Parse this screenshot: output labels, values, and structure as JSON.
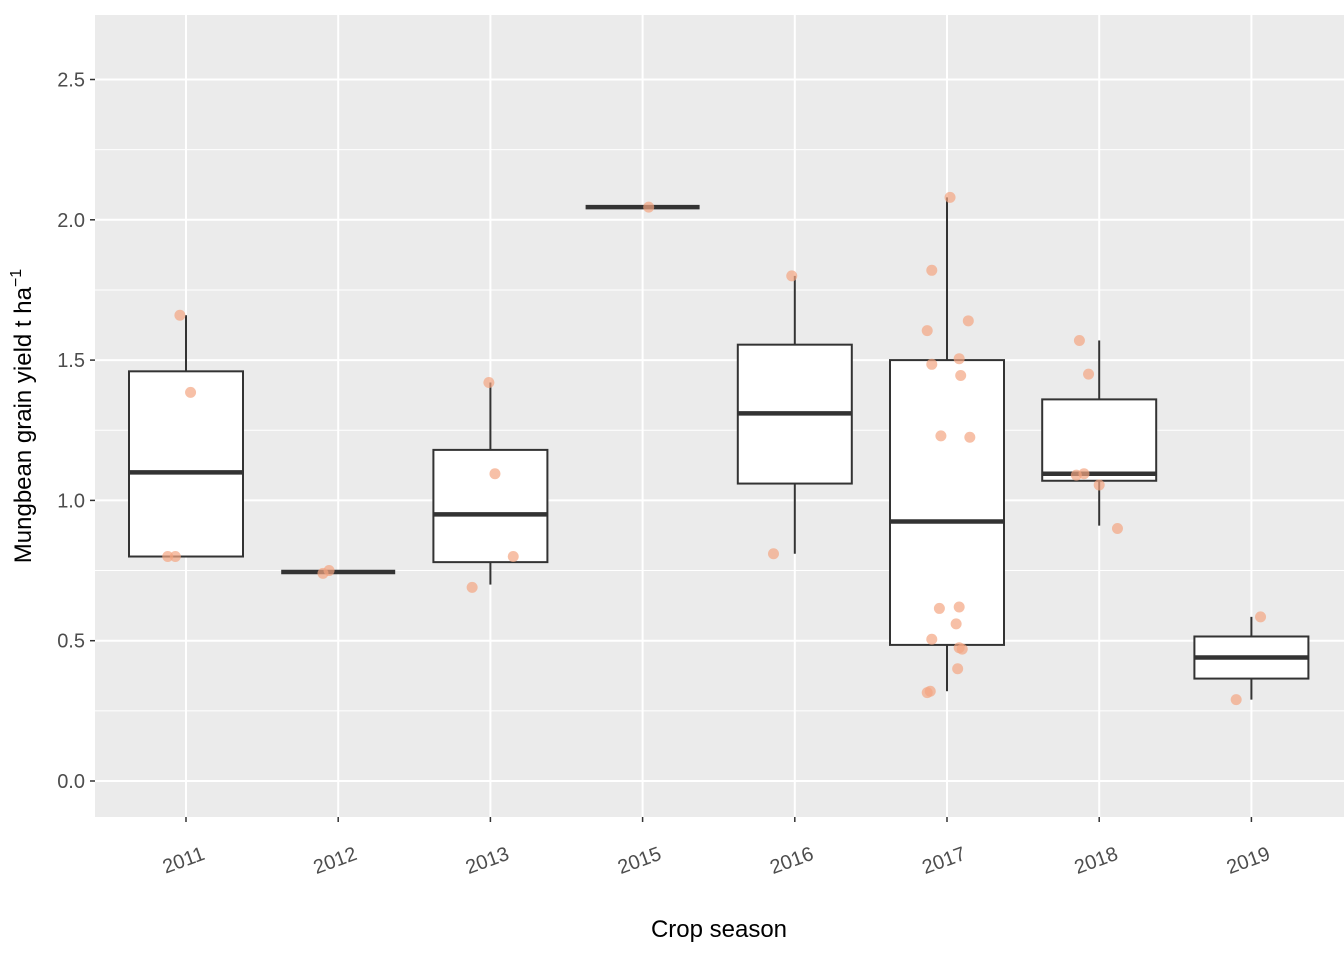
{
  "chart_data": {
    "type": "box",
    "xlabel": "Crop season",
    "ylabel": "Mungbean grain yield  t ha",
    "ylabel_superscript": "−1",
    "ylim": [
      -0.13,
      2.72
    ],
    "yticks": [
      "0.0",
      "0.5",
      "1.0",
      "1.5",
      "2.0",
      "2.5"
    ],
    "categories": [
      "2011",
      "2012",
      "2013",
      "2015",
      "2016",
      "2017",
      "2018",
      "2019"
    ],
    "grid": true,
    "colors": {
      "panel_bg": "#ebebeb",
      "grid": "#ffffff",
      "box_line": "#333333",
      "box_fill": "#ffffff",
      "point": "#f4a582"
    },
    "boxes": [
      {
        "category": "2011",
        "q1": 0.8,
        "median": 1.1,
        "q3": 1.46,
        "whisker_low": 0.8,
        "whisker_high": 1.66
      },
      {
        "category": "2012",
        "q1": 0.745,
        "median": 0.745,
        "q3": 0.745,
        "whisker_low": 0.745,
        "whisker_high": 0.745
      },
      {
        "category": "2013",
        "q1": 0.78,
        "median": 0.95,
        "q3": 1.18,
        "whisker_low": 0.7,
        "whisker_high": 1.42
      },
      {
        "category": "2015",
        "q1": 2.045,
        "median": 2.045,
        "q3": 2.045,
        "whisker_low": 2.045,
        "whisker_high": 2.045
      },
      {
        "category": "2016",
        "q1": 1.06,
        "median": 1.31,
        "q3": 1.555,
        "whisker_low": 0.81,
        "whisker_high": 1.8
      },
      {
        "category": "2017",
        "q1": 0.485,
        "median": 0.925,
        "q3": 1.5,
        "whisker_low": 0.32,
        "whisker_high": 2.08
      },
      {
        "category": "2018",
        "q1": 1.07,
        "median": 1.095,
        "q3": 1.36,
        "whisker_low": 0.91,
        "whisker_high": 1.57
      },
      {
        "category": "2019",
        "q1": 0.365,
        "median": 0.44,
        "q3": 0.515,
        "whisker_low": 0.29,
        "whisker_high": 0.585
      }
    ],
    "points": [
      {
        "category": "2011",
        "jitter": -0.12,
        "y": 0.8
      },
      {
        "category": "2011",
        "jitter": -0.07,
        "y": 0.8
      },
      {
        "category": "2011",
        "jitter": 0.03,
        "y": 1.385
      },
      {
        "category": "2011",
        "jitter": -0.04,
        "y": 1.66
      },
      {
        "category": "2012",
        "jitter": -0.1,
        "y": 0.74
      },
      {
        "category": "2012",
        "jitter": -0.06,
        "y": 0.75
      },
      {
        "category": "2013",
        "jitter": -0.12,
        "y": 0.69
      },
      {
        "category": "2013",
        "jitter": 0.15,
        "y": 0.8
      },
      {
        "category": "2013",
        "jitter": 0.03,
        "y": 1.095
      },
      {
        "category": "2013",
        "jitter": -0.01,
        "y": 1.42
      },
      {
        "category": "2015",
        "jitter": 0.04,
        "y": 2.045
      },
      {
        "category": "2016",
        "jitter": -0.14,
        "y": 0.81
      },
      {
        "category": "2016",
        "jitter": -0.02,
        "y": 1.8
      },
      {
        "category": "2017",
        "jitter": -0.13,
        "y": 0.315
      },
      {
        "category": "2017",
        "jitter": -0.11,
        "y": 0.32
      },
      {
        "category": "2017",
        "jitter": 0.07,
        "y": 0.4
      },
      {
        "category": "2017",
        "jitter": 0.1,
        "y": 0.47
      },
      {
        "category": "2017",
        "jitter": 0.08,
        "y": 0.475
      },
      {
        "category": "2017",
        "jitter": -0.1,
        "y": 0.505
      },
      {
        "category": "2017",
        "jitter": 0.06,
        "y": 0.56
      },
      {
        "category": "2017",
        "jitter": -0.05,
        "y": 0.615
      },
      {
        "category": "2017",
        "jitter": 0.08,
        "y": 0.62
      },
      {
        "category": "2017",
        "jitter": -0.04,
        "y": 1.23
      },
      {
        "category": "2017",
        "jitter": 0.15,
        "y": 1.225
      },
      {
        "category": "2017",
        "jitter": 0.09,
        "y": 1.445
      },
      {
        "category": "2017",
        "jitter": -0.1,
        "y": 1.485
      },
      {
        "category": "2017",
        "jitter": 0.08,
        "y": 1.505
      },
      {
        "category": "2017",
        "jitter": -0.13,
        "y": 1.605
      },
      {
        "category": "2017",
        "jitter": 0.14,
        "y": 1.64
      },
      {
        "category": "2017",
        "jitter": -0.1,
        "y": 1.82
      },
      {
        "category": "2017",
        "jitter": 0.02,
        "y": 2.08
      },
      {
        "category": "2018",
        "jitter": 0.12,
        "y": 0.9
      },
      {
        "category": "2018",
        "jitter": 0.0,
        "y": 1.055
      },
      {
        "category": "2018",
        "jitter": -0.15,
        "y": 1.09
      },
      {
        "category": "2018",
        "jitter": -0.1,
        "y": 1.095
      },
      {
        "category": "2018",
        "jitter": -0.07,
        "y": 1.45
      },
      {
        "category": "2018",
        "jitter": -0.13,
        "y": 1.57
      },
      {
        "category": "2019",
        "jitter": -0.1,
        "y": 0.29
      },
      {
        "category": "2019",
        "jitter": 0.06,
        "y": 0.585
      }
    ]
  }
}
